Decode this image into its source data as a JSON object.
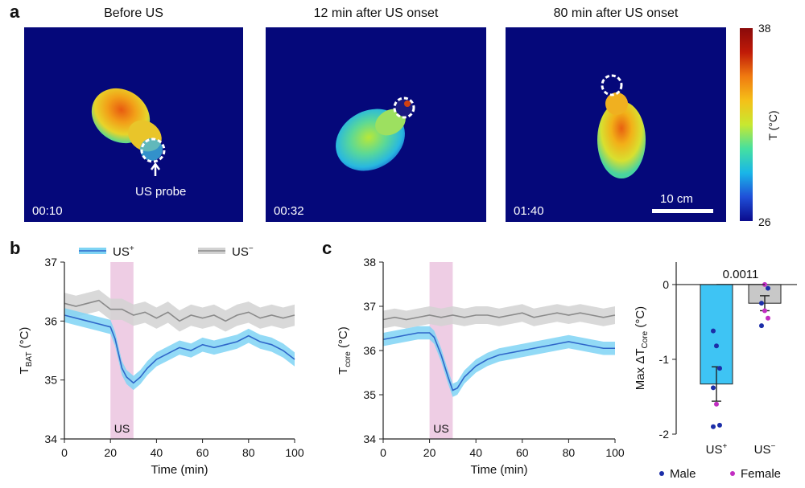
{
  "panel_a": {
    "letter": "a",
    "images": [
      {
        "title": "Before US",
        "timestamp": "00:10",
        "annotation": "US probe"
      },
      {
        "title": "12 min after US onset",
        "timestamp": "00:32"
      },
      {
        "title": "80 min after US onset",
        "timestamp": "01:40",
        "scale_bar": "10 cm"
      }
    ],
    "colorbar": {
      "max": "38",
      "min": "26",
      "label": "T (°C)",
      "colors": [
        "#0a0a8c",
        "#1f4fd8",
        "#19b6e8",
        "#45e0a0",
        "#c8e830",
        "#f5c018",
        "#f07a10",
        "#c01a08",
        "#8a0a0a"
      ]
    }
  },
  "panel_b": {
    "letter": "b",
    "legend": [
      "US+",
      "US−"
    ]
  },
  "panel_c": {
    "letter": "c"
  },
  "legend_bottom": {
    "male": "Male",
    "female": "Female"
  },
  "colors": {
    "us_plus_line": "#2f66c9",
    "us_plus_band": "#7fd4f4",
    "us_minus_line": "#8a8a8a",
    "us_minus_band": "#d2d2d2",
    "us_shade": "#eecde4",
    "bar_plus": "#3ec4f4",
    "bar_minus": "#c8c8c8",
    "male": "#1c2ea8",
    "female": "#c22ec2"
  },
  "chart_data": [
    {
      "type": "line",
      "ylabel": "T_BAT (°C)",
      "ylabel_main": "T",
      "ylabel_sub": "BAT",
      "ylabel_unit": " (°C)",
      "xlabel": "Time (min)",
      "xlim": [
        0,
        100
      ],
      "ylim": [
        34,
        37
      ],
      "xticks": [
        "0",
        "20",
        "40",
        "60",
        "80",
        "100"
      ],
      "yticks": [
        "34",
        "35",
        "36",
        "37"
      ],
      "annotation": "US",
      "shaded_interval": [
        20,
        30
      ],
      "series": [
        {
          "name": "US+",
          "x": [
            0,
            5,
            10,
            15,
            20,
            22,
            25,
            27,
            30,
            33,
            36,
            40,
            45,
            50,
            55,
            60,
            65,
            70,
            75,
            80,
            85,
            90,
            95,
            100
          ],
          "y": [
            36.1,
            36.05,
            36.0,
            35.95,
            35.9,
            35.7,
            35.2,
            35.05,
            34.95,
            35.05,
            35.2,
            35.35,
            35.45,
            35.55,
            35.5,
            35.6,
            35.55,
            35.6,
            35.65,
            35.75,
            35.65,
            35.6,
            35.5,
            35.35
          ],
          "band": 0.12
        },
        {
          "name": "US−",
          "x": [
            0,
            5,
            10,
            15,
            20,
            25,
            30,
            35,
            40,
            45,
            50,
            55,
            60,
            65,
            70,
            75,
            80,
            85,
            90,
            95,
            100
          ],
          "y": [
            36.3,
            36.25,
            36.3,
            36.35,
            36.2,
            36.2,
            36.1,
            36.15,
            36.05,
            36.15,
            36.0,
            36.1,
            36.05,
            36.1,
            36.0,
            36.1,
            36.15,
            36.05,
            36.1,
            36.05,
            36.1
          ],
          "band": 0.18
        }
      ]
    },
    {
      "type": "line",
      "ylabel": "T_core (°C)",
      "ylabel_main": "T",
      "ylabel_sub": "core",
      "ylabel_unit": " (°C)",
      "xlabel": "Time (min)",
      "xlim": [
        0,
        100
      ],
      "ylim": [
        34,
        38
      ],
      "xticks": [
        "0",
        "20",
        "40",
        "60",
        "80",
        "100"
      ],
      "yticks": [
        "34",
        "35",
        "36",
        "37",
        "38"
      ],
      "annotation": "US",
      "shaded_interval": [
        20,
        30
      ],
      "series": [
        {
          "name": "US+",
          "x": [
            0,
            5,
            10,
            15,
            20,
            22,
            25,
            28,
            30,
            32,
            35,
            40,
            45,
            50,
            55,
            60,
            65,
            70,
            75,
            80,
            85,
            90,
            95,
            100
          ],
          "y": [
            36.25,
            36.3,
            36.35,
            36.4,
            36.4,
            36.3,
            35.9,
            35.4,
            35.1,
            35.15,
            35.4,
            35.65,
            35.8,
            35.9,
            35.95,
            36.0,
            36.05,
            36.1,
            36.15,
            36.2,
            36.15,
            36.1,
            36.05,
            36.05
          ],
          "band": 0.15
        },
        {
          "name": "US−",
          "x": [
            0,
            5,
            10,
            15,
            20,
            25,
            30,
            35,
            40,
            45,
            50,
            55,
            60,
            65,
            70,
            75,
            80,
            85,
            90,
            95,
            100
          ],
          "y": [
            36.7,
            36.75,
            36.7,
            36.75,
            36.8,
            36.75,
            36.8,
            36.75,
            36.8,
            36.8,
            36.75,
            36.8,
            36.85,
            36.75,
            36.8,
            36.85,
            36.8,
            36.85,
            36.8,
            36.75,
            36.8
          ],
          "band": 0.2
        }
      ]
    },
    {
      "type": "bar",
      "ylabel": "Max ΔT_Core (°C)",
      "ylabel_main": "Max ΔT",
      "ylabel_sub": "Core",
      "ylabel_unit": " (°C)",
      "categories": [
        "US+",
        " US−"
      ],
      "category_main": [
        "US",
        "US"
      ],
      "category_sup": [
        "+",
        "−"
      ],
      "values": [
        -1.33,
        -0.25
      ],
      "errors": [
        0.23,
        0.1
      ],
      "ylim": [
        -2,
        0.3
      ],
      "yticks": [
        "0",
        "-1",
        "-2"
      ],
      "significance": "0.0011",
      "points": [
        {
          "bar": 0,
          "y": -0.62,
          "sex": "male"
        },
        {
          "bar": 0,
          "y": -0.82,
          "sex": "male"
        },
        {
          "bar": 0,
          "y": -1.12,
          "sex": "male"
        },
        {
          "bar": 0,
          "y": -1.38,
          "sex": "male"
        },
        {
          "bar": 0,
          "y": -1.6,
          "sex": "female"
        },
        {
          "bar": 0,
          "y": -1.88,
          "sex": "male"
        },
        {
          "bar": 0,
          "y": -1.9,
          "sex": "male"
        },
        {
          "bar": 1,
          "y": 0.0,
          "sex": "female"
        },
        {
          "bar": 1,
          "y": -0.05,
          "sex": "male"
        },
        {
          "bar": 1,
          "y": -0.25,
          "sex": "male"
        },
        {
          "bar": 1,
          "y": -0.35,
          "sex": "female"
        },
        {
          "bar": 1,
          "y": -0.45,
          "sex": "female"
        },
        {
          "bar": 1,
          "y": -0.55,
          "sex": "male"
        }
      ]
    }
  ]
}
